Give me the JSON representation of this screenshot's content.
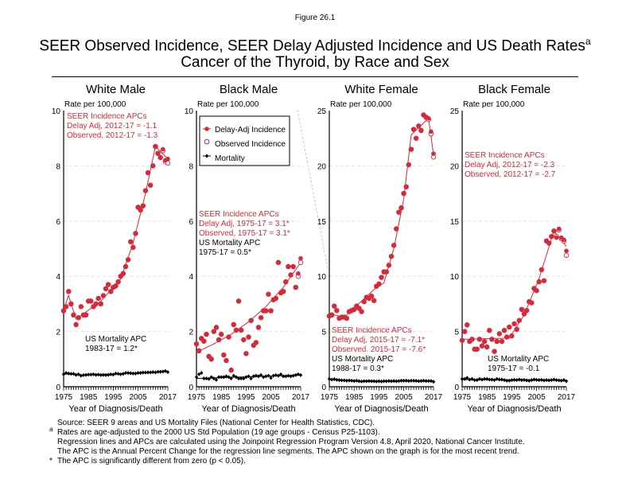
{
  "figure_label": "Figure 26.1",
  "title_line1": "SEER Observed Incidence, SEER Delay Adjusted Incidence and US Death Rates",
  "title_sup": "a",
  "title_line2": "Cancer of the Thyroid, by Race and Sex",
  "legend": [
    "Delay-Adj Incidence",
    "Observed Incidence",
    "Mortality"
  ],
  "colors": {
    "incidence": "#d62a3a",
    "mortality": "#000000",
    "grid": "#dddddd"
  },
  "footer": {
    "lines": [
      "Source: SEER 9 areas and US Mortality Files (National Center for Health Statistics, CDC).",
      "Rates are age-adjusted to the 2000 US Std Population (19 age groups - Census P25-1103).",
      "Regression lines and APCs are calculated using the Joinpoint Regression Program Version 4.8, April 2020, National Cancer Institute.",
      "The APC is the Annual Percent Change for the regression line segments. The APC shown on the graph is for the most recent trend.",
      "The APC is significantly different from zero (p < 0.05)."
    ],
    "mark_a": "a",
    "mark_star": "*"
  },
  "chart_data": [
    {
      "type": "scatter",
      "title": "White Male",
      "ylabel": "Rate per 100,000",
      "xlabel": "Year of Diagnosis/Death",
      "xlim": [
        1975,
        2017
      ],
      "ylim": [
        0,
        10
      ],
      "yticks": [
        0,
        2,
        4,
        6,
        8,
        10
      ],
      "xticks": [
        1975,
        1985,
        1995,
        2005,
        2017
      ],
      "grid": true,
      "annotation_incidence": [
        "SEER Incidence APCs",
        "Delay Adj, 2012-17 = -1.1",
        "Observed, 2012-17 = -1.3"
      ],
      "annotation_mortality": [
        "US Mortality APC",
        "1983-17 = 1.2*"
      ],
      "series": {
        "delay_adj": [
          2.75,
          2.9,
          3.45,
          3.0,
          2.6,
          2.25,
          2.5,
          2.9,
          2.6,
          2.6,
          3.1,
          3.1,
          2.9,
          3.0,
          3.2,
          3.0,
          3.3,
          3.55,
          3.7,
          3.45,
          3.6,
          3.65,
          3.8,
          4.0,
          4.1,
          4.35,
          4.6,
          5.25,
          5.05,
          5.55,
          6.5,
          6.4,
          6.55,
          7.1,
          7.75,
          7.3,
          8.0,
          8.7,
          8.45,
          8.3,
          8.6,
          8.2,
          8.25
        ],
        "observed": [
          2.75,
          2.9,
          3.45,
          3.0,
          2.6,
          2.25,
          2.5,
          2.9,
          2.6,
          2.6,
          3.1,
          3.1,
          2.9,
          3.0,
          3.2,
          3.0,
          3.3,
          3.55,
          3.7,
          3.45,
          3.6,
          3.65,
          3.8,
          4.0,
          4.1,
          4.35,
          4.6,
          5.25,
          5.05,
          5.55,
          6.5,
          6.4,
          6.55,
          7.1,
          7.75,
          7.3,
          8.0,
          8.7,
          8.45,
          8.3,
          8.55,
          8.15,
          8.1
        ],
        "mortality": [
          0.45,
          0.5,
          0.48,
          0.47,
          0.47,
          0.43,
          0.45,
          0.4,
          0.42,
          0.43,
          0.44,
          0.44,
          0.45,
          0.43,
          0.44,
          0.42,
          0.43,
          0.42,
          0.43,
          0.45,
          0.44,
          0.48,
          0.47,
          0.45,
          0.47,
          0.5,
          0.5,
          0.49,
          0.48,
          0.48,
          0.5,
          0.5,
          0.51,
          0.51,
          0.52,
          0.52,
          0.53,
          0.52,
          0.54,
          0.54,
          0.55,
          0.57,
          0.53
        ],
        "fit_incidence": [
          [
            1975,
            2.8
          ],
          [
            1977,
            3.3
          ],
          [
            1980,
            2.45
          ],
          [
            1990,
            3.1
          ],
          [
            1998,
            3.9
          ],
          [
            2003,
            5.2
          ],
          [
            2008,
            7.0
          ],
          [
            2012,
            8.7
          ],
          [
            2017,
            8.25
          ]
        ],
        "fit_mortality": [
          [
            1975,
            0.47
          ],
          [
            1983,
            0.42
          ],
          [
            2017,
            0.55
          ]
        ]
      }
    },
    {
      "type": "scatter",
      "title": "Black Male",
      "ylabel": "Rate per 100,000",
      "xlabel": "Year of Diagnosis/Death",
      "xlim": [
        1975,
        2017
      ],
      "ylim": [
        0,
        10
      ],
      "yticks": [
        0,
        2,
        4,
        6,
        8,
        10
      ],
      "xticks": [
        1975,
        1985,
        1995,
        2005,
        2017
      ],
      "grid": true,
      "legend_position": "top-left",
      "annotation_incidence": [
        "SEER Incidence APCs",
        "Delay Adj, 1975-17 = 3.1*",
        "Observed, 1975-17 = 3.1*"
      ],
      "annotation_mortality": [
        "US Mortality APC",
        "1975-17 = 0.5*"
      ],
      "series": {
        "delay_adj": [
          1.55,
          1.3,
          1.75,
          1.65,
          1.9,
          1.1,
          1.0,
          2.0,
          2.15,
          1.7,
          1.9,
          1.15,
          0.95,
          1.8,
          0.6,
          2.25,
          2.05,
          3.1,
          2.05,
          1.7,
          1.2,
          1.8,
          2.4,
          1.5,
          1.6,
          2.15,
          2.5,
          2.75,
          2.75,
          3.35,
          2.75,
          3.15,
          3.2,
          4.5,
          3.4,
          3.45,
          3.8,
          4.35,
          4.05,
          4.35,
          3.6,
          4.1,
          4.65
        ],
        "observed": [
          1.55,
          1.3,
          1.75,
          1.65,
          1.9,
          1.1,
          1.0,
          2.0,
          2.15,
          1.7,
          1.9,
          1.15,
          0.95,
          1.8,
          0.6,
          2.25,
          2.05,
          3.1,
          2.05,
          1.7,
          1.2,
          1.8,
          2.4,
          1.5,
          1.6,
          2.15,
          2.5,
          2.75,
          2.75,
          3.35,
          2.75,
          3.15,
          3.2,
          4.5,
          3.4,
          3.45,
          3.8,
          4.35,
          4.05,
          4.35,
          3.6,
          4.0,
          4.5
        ],
        "mortality": [
          0.35,
          0.45,
          0.5,
          0.3,
          0.3,
          0.28,
          0.35,
          0.3,
          0.25,
          0.35,
          0.35,
          0.35,
          0.38,
          0.35,
          0.3,
          0.4,
          0.35,
          0.3,
          0.3,
          0.3,
          0.35,
          0.38,
          0.3,
          0.38,
          0.4,
          0.38,
          0.42,
          0.35,
          0.38,
          0.4,
          0.32,
          0.4,
          0.42,
          0.4,
          0.45,
          0.38,
          0.38,
          0.4,
          0.38,
          0.4,
          0.42,
          0.45,
          0.42
        ],
        "fit_incidence": [
          [
            1975,
            1.25
          ],
          [
            1982,
            1.55
          ],
          [
            1989,
            1.9
          ],
          [
            1996,
            2.35
          ],
          [
            2003,
            2.9
          ],
          [
            2010,
            3.6
          ],
          [
            2017,
            4.5
          ]
        ],
        "fit_mortality": [
          [
            1975,
            0.3
          ],
          [
            2017,
            0.42
          ]
        ]
      }
    },
    {
      "type": "scatter",
      "title": "White Female",
      "ylabel": "Rate per 100,000",
      "xlabel": "Year of Diagnosis/Death",
      "xlim": [
        1975,
        2017
      ],
      "ylim": [
        0,
        25
      ],
      "yticks": [
        0,
        5,
        10,
        15,
        20,
        25
      ],
      "xticks": [
        1975,
        1985,
        1995,
        2005,
        2017
      ],
      "grid": true,
      "annotation_incidence": [
        "SEER Incidence APCs",
        "Delay Adj, 2015-17 = -7.1*",
        "Observed. 2015-17 = -7.6*"
      ],
      "annotation_mortality": [
        "US Mortality APC",
        "1988-17 = 0.3*"
      ],
      "series": {
        "delay_adj": [
          6.4,
          6.5,
          7.3,
          6.9,
          6.2,
          6.3,
          6.3,
          6.2,
          6.8,
          6.9,
          7.0,
          7.3,
          7.1,
          6.8,
          7.7,
          8.1,
          8.0,
          8.2,
          7.8,
          9.1,
          9.3,
          9.9,
          10.4,
          10.4,
          11.0,
          11.8,
          12.8,
          14.3,
          15.8,
          16.2,
          17.5,
          18.1,
          20.1,
          21.5,
          23.3,
          22.5,
          23.6,
          23.2,
          24.6,
          24.4,
          24.3,
          23.1,
          21.1
        ],
        "observed": [
          6.4,
          6.5,
          7.3,
          6.9,
          6.2,
          6.3,
          6.3,
          6.2,
          6.8,
          6.9,
          7.0,
          7.3,
          7.1,
          6.8,
          7.7,
          8.1,
          8.0,
          8.2,
          7.8,
          9.1,
          9.3,
          9.9,
          10.4,
          10.4,
          11.0,
          11.8,
          12.8,
          14.3,
          15.8,
          16.2,
          17.5,
          18.1,
          20.1,
          21.5,
          23.3,
          22.5,
          23.6,
          23.2,
          24.6,
          24.4,
          24.2,
          22.9,
          20.8
        ],
        "mortality": [
          0.7,
          0.65,
          0.68,
          0.62,
          0.6,
          0.58,
          0.58,
          0.55,
          0.57,
          0.55,
          0.52,
          0.55,
          0.5,
          0.48,
          0.5,
          0.5,
          0.52,
          0.5,
          0.5,
          0.48,
          0.5,
          0.48,
          0.5,
          0.5,
          0.52,
          0.5,
          0.52,
          0.5,
          0.52,
          0.55,
          0.55,
          0.55,
          0.52,
          0.55,
          0.55,
          0.53,
          0.5,
          0.52,
          0.55,
          0.52,
          0.52,
          0.52,
          0.45
        ],
        "fit_incidence": [
          [
            1975,
            6.6
          ],
          [
            1981,
            6.3
          ],
          [
            1994,
            9.0
          ],
          [
            1997,
            9.4
          ],
          [
            2001,
            12.5
          ],
          [
            2005,
            17.0
          ],
          [
            2008,
            22.8
          ],
          [
            2015,
            24.3
          ],
          [
            2017,
            21.0
          ]
        ],
        "fit_mortality": [
          [
            1975,
            0.68
          ],
          [
            1988,
            0.5
          ],
          [
            2017,
            0.52
          ]
        ]
      }
    },
    {
      "type": "scatter",
      "title": "Black Female",
      "ylabel": "Rate per 100,000",
      "xlabel": "Year of Diagnosis/Death",
      "xlim": [
        1975,
        2017
      ],
      "ylim": [
        0,
        25
      ],
      "yticks": [
        0,
        5,
        10,
        15,
        20,
        25
      ],
      "xticks": [
        1975,
        1985,
        1995,
        2005,
        2017
      ],
      "grid": true,
      "annotation_incidence": [
        "SEER Incidence APCs",
        "Delay Adj, 2012-17 = -2.3",
        "Observed, 2012-17 = -2.7"
      ],
      "annotation_mortality": [
        "US Mortality APC",
        "1975-17 = -0.1"
      ],
      "series": {
        "delay_adj": [
          4.2,
          5.0,
          5.6,
          4.1,
          4.3,
          3.4,
          3.4,
          4.3,
          3.7,
          4.1,
          3.6,
          5.1,
          4.3,
          3.2,
          4.1,
          4.8,
          4.1,
          5.1,
          4.5,
          5.4,
          4.6,
          5.7,
          5.2,
          6.0,
          7.0,
          6.6,
          6.9,
          7.7,
          7.6,
          8.9,
          8.7,
          9.5,
          10.6,
          9.6,
          13.2,
          13.0,
          13.6,
          14.1,
          13.5,
          14.3,
          13.5,
          13.3,
          12.3
        ],
        "observed": [
          4.2,
          5.0,
          5.6,
          4.1,
          4.3,
          3.4,
          3.4,
          4.3,
          3.7,
          4.1,
          3.6,
          5.1,
          4.3,
          3.2,
          4.1,
          4.8,
          4.1,
          5.1,
          4.5,
          5.4,
          4.6,
          5.7,
          5.2,
          6.0,
          7.0,
          6.6,
          6.9,
          7.7,
          7.6,
          8.9,
          8.7,
          9.5,
          10.6,
          9.6,
          13.2,
          13.0,
          13.6,
          14.1,
          13.6,
          14.2,
          13.4,
          13.2,
          11.9
        ],
        "mortality": [
          0.7,
          0.7,
          0.8,
          0.65,
          0.7,
          0.6,
          0.6,
          0.7,
          0.65,
          0.7,
          0.7,
          0.65,
          0.65,
          0.6,
          0.7,
          0.65,
          0.65,
          0.6,
          0.55,
          0.55,
          0.6,
          0.62,
          0.6,
          0.65,
          0.6,
          0.62,
          0.58,
          0.55,
          0.6,
          0.65,
          0.62,
          0.6,
          0.62,
          0.58,
          0.6,
          0.58,
          0.6,
          0.65,
          0.6,
          0.58,
          0.55,
          0.6,
          0.5
        ],
        "fit_incidence": [
          [
            1975,
            4.3
          ],
          [
            1994,
            4.4
          ],
          [
            2000,
            6.5
          ],
          [
            2006,
            9.8
          ],
          [
            2012,
            14.1
          ],
          [
            2017,
            12.7
          ]
        ],
        "fit_mortality": [
          [
            1975,
            0.65
          ],
          [
            2017,
            0.6
          ]
        ]
      }
    }
  ]
}
